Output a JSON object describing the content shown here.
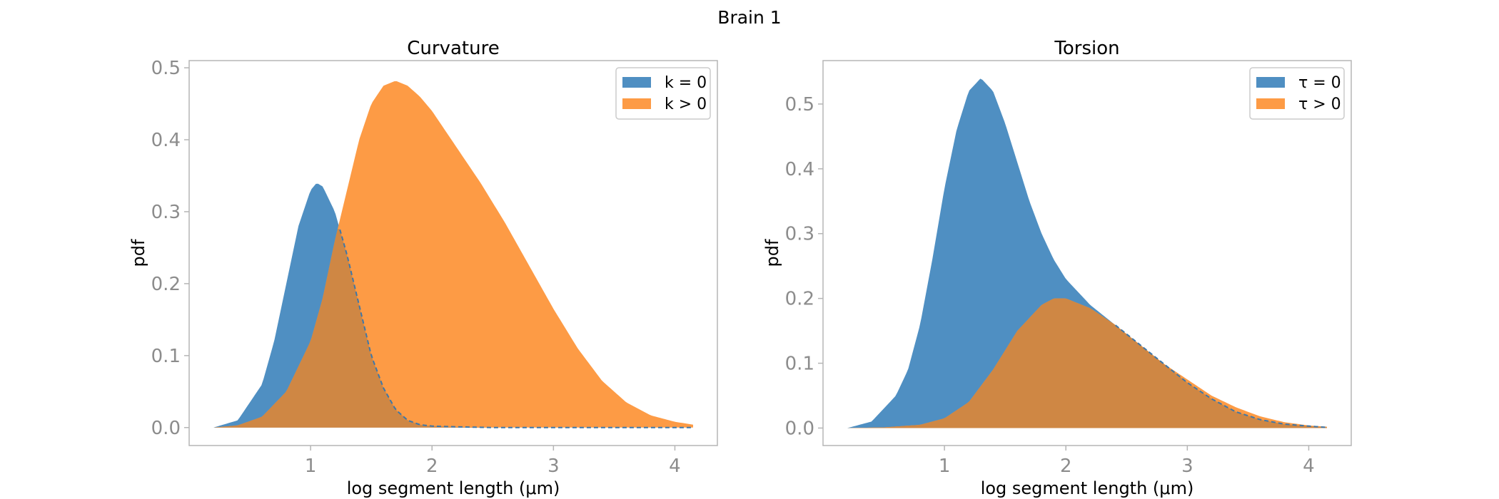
{
  "figure": {
    "suptitle": "Brain 1"
  },
  "colors": {
    "blue": "#4f8fc2",
    "orange": "#fd9b45",
    "overlap": "#cf8744",
    "dashed": "#3e77a8"
  },
  "chart_data": [
    {
      "type": "area",
      "title": "Curvature",
      "xlabel": "log segment length (μm)",
      "ylabel": "pdf",
      "xlim": [
        0.0,
        4.35
      ],
      "ylim": [
        -0.025,
        0.51
      ],
      "xticks": [
        1,
        2,
        3,
        4
      ],
      "xtick_labels": [
        "1",
        "2",
        "3",
        "4"
      ],
      "yticks": [
        0.0,
        0.1,
        0.2,
        0.3,
        0.4,
        0.5
      ],
      "ytick_labels": [
        "0.0",
        "0.1",
        "0.2",
        "0.3",
        "0.4",
        "0.5"
      ],
      "legend_position": "top-right",
      "series": [
        {
          "name": "k = 0",
          "color": "blue",
          "x": [
            0.2,
            0.4,
            0.6,
            0.7,
            0.8,
            0.9,
            1.0,
            1.05,
            1.1,
            1.2,
            1.3,
            1.4,
            1.5,
            1.6,
            1.7,
            1.8,
            1.9,
            2.0,
            2.2,
            2.5,
            3.0,
            3.5,
            4.15
          ],
          "values": [
            0.0,
            0.01,
            0.06,
            0.12,
            0.2,
            0.28,
            0.33,
            0.34,
            0.335,
            0.3,
            0.24,
            0.17,
            0.1,
            0.055,
            0.025,
            0.01,
            0.004,
            0.002,
            0.001,
            0.0,
            0.0,
            0.0,
            0.0
          ]
        },
        {
          "name": "k > 0",
          "color": "orange",
          "x": [
            0.2,
            0.4,
            0.6,
            0.8,
            1.0,
            1.1,
            1.2,
            1.3,
            1.4,
            1.5,
            1.6,
            1.7,
            1.8,
            1.9,
            2.0,
            2.2,
            2.4,
            2.6,
            2.8,
            3.0,
            3.2,
            3.4,
            3.6,
            3.8,
            4.0,
            4.15
          ],
          "values": [
            0.0,
            0.003,
            0.015,
            0.05,
            0.12,
            0.18,
            0.26,
            0.33,
            0.4,
            0.45,
            0.475,
            0.482,
            0.475,
            0.46,
            0.44,
            0.39,
            0.34,
            0.285,
            0.225,
            0.165,
            0.11,
            0.065,
            0.035,
            0.017,
            0.008,
            0.004
          ]
        }
      ]
    },
    {
      "type": "area",
      "title": "Torsion",
      "xlabel": "log segment length (μm)",
      "ylabel": "pdf",
      "xlim": [
        0.0,
        4.35
      ],
      "ylim": [
        -0.027,
        0.567
      ],
      "xticks": [
        1,
        2,
        3,
        4
      ],
      "xtick_labels": [
        "1",
        "2",
        "3",
        "4"
      ],
      "yticks": [
        0.0,
        0.1,
        0.2,
        0.3,
        0.4,
        0.5
      ],
      "ytick_labels": [
        "0.0",
        "0.1",
        "0.2",
        "0.3",
        "0.4",
        "0.5"
      ],
      "legend_position": "top-right",
      "series": [
        {
          "name": "τ = 0",
          "color": "blue",
          "x": [
            0.2,
            0.4,
            0.6,
            0.7,
            0.8,
            0.9,
            1.0,
            1.1,
            1.2,
            1.3,
            1.4,
            1.5,
            1.6,
            1.7,
            1.8,
            1.9,
            2.0,
            2.2,
            2.4,
            2.6,
            2.8,
            3.0,
            3.2,
            3.4,
            3.6,
            3.8,
            4.0,
            4.15
          ],
          "values": [
            0.0,
            0.01,
            0.05,
            0.09,
            0.16,
            0.26,
            0.37,
            0.46,
            0.52,
            0.54,
            0.52,
            0.47,
            0.41,
            0.35,
            0.3,
            0.26,
            0.23,
            0.19,
            0.16,
            0.13,
            0.1,
            0.07,
            0.045,
            0.025,
            0.013,
            0.006,
            0.003,
            0.001
          ]
        },
        {
          "name": "τ > 0",
          "color": "orange",
          "x": [
            0.2,
            0.5,
            0.8,
            1.0,
            1.2,
            1.4,
            1.6,
            1.8,
            1.9,
            2.0,
            2.2,
            2.4,
            2.6,
            2.8,
            3.0,
            3.2,
            3.4,
            3.6,
            3.8,
            4.0,
            4.15
          ],
          "values": [
            0.0,
            0.001,
            0.005,
            0.015,
            0.04,
            0.09,
            0.15,
            0.19,
            0.2,
            0.2,
            0.185,
            0.16,
            0.13,
            0.1,
            0.075,
            0.05,
            0.032,
            0.018,
            0.009,
            0.004,
            0.002
          ]
        }
      ]
    }
  ]
}
